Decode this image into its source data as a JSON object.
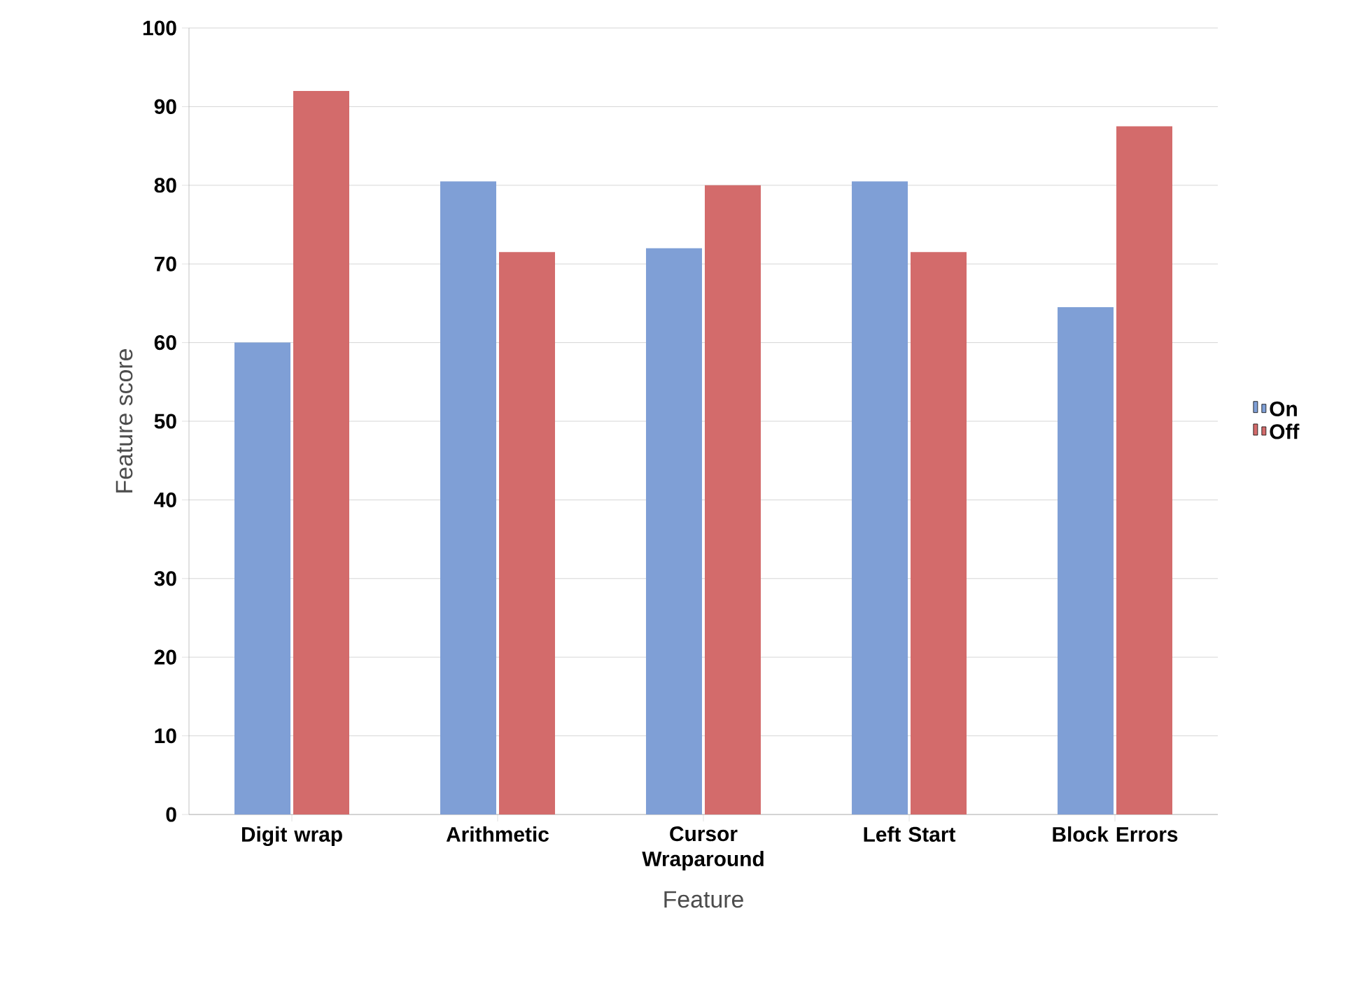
{
  "chart_data": {
    "type": "bar",
    "xlabel": "Feature",
    "ylabel": "Feature score",
    "categories": [
      "Digit wrap",
      "Arithmetic",
      "Cursor Wraparound",
      "Left Start",
      "Block Errors"
    ],
    "series": [
      {
        "name": "On",
        "color": "#7f9fd6",
        "values": [
          60,
          80.5,
          72,
          80.5,
          64.5
        ]
      },
      {
        "name": "Off",
        "color": "#d36b6b",
        "values": [
          92,
          71.5,
          80,
          71.5,
          87.5
        ]
      }
    ],
    "ylim": [
      0,
      100
    ],
    "yticks": [
      0,
      10,
      20,
      30,
      40,
      50,
      60,
      70,
      80,
      90,
      100
    ],
    "grid": "y",
    "legend": "right"
  }
}
